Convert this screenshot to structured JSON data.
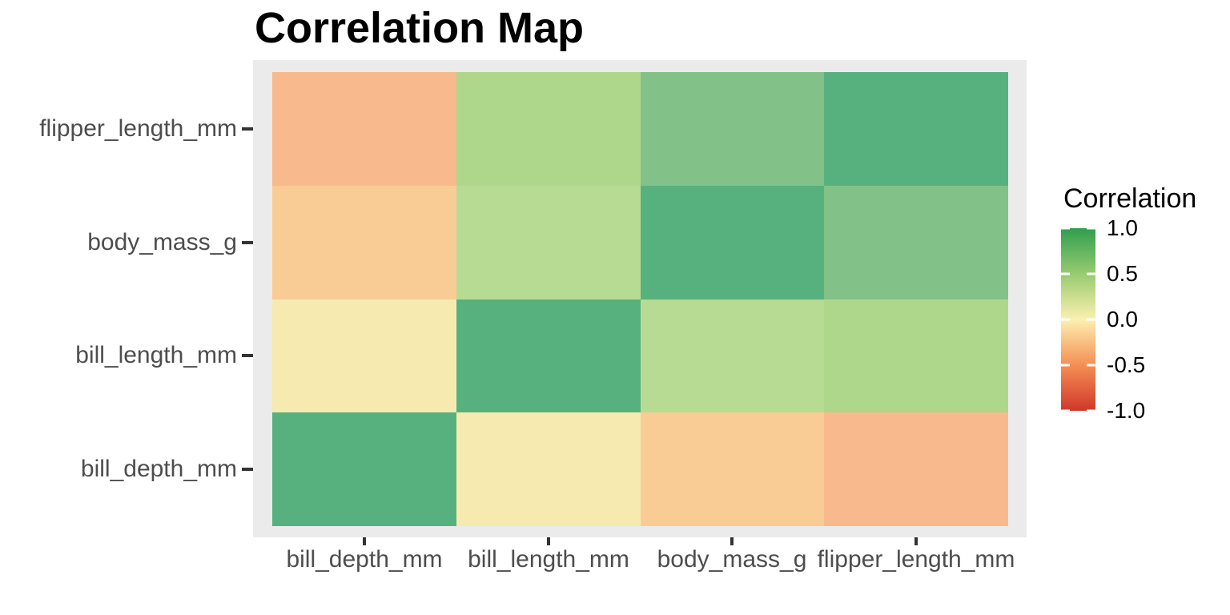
{
  "title": "Correlation Map",
  "colors": {
    "panel_background": "#ebebeb",
    "axis_text": "#4d4d4d",
    "tick_mark": "#333333",
    "title_text": "#000000"
  },
  "chart_data": {
    "type": "heatmap",
    "title": "Correlation Map",
    "x_categories": [
      "bill_depth_mm",
      "bill_length_mm",
      "body_mass_g",
      "flipper_length_mm"
    ],
    "y_categories_top_to_bottom": [
      "flipper_length_mm",
      "body_mass_g",
      "bill_length_mm",
      "bill_depth_mm"
    ],
    "value_range": [
      -1,
      1
    ],
    "grid": false,
    "legend": {
      "title": "Correlation",
      "position": "right",
      "ticks": [
        "1.0",
        "0.5",
        "0.0",
        "-0.5",
        "-1.0"
      ],
      "gradient_stops": [
        {
          "value": 1.0,
          "color": "#2f9e4f"
        },
        {
          "value": 0.5,
          "color": "#97cb70"
        },
        {
          "value": 0.0,
          "color": "#fcf0b0"
        },
        {
          "value": -0.5,
          "color": "#f58e54"
        },
        {
          "value": -1.0,
          "color": "#cf382a"
        }
      ]
    },
    "cells": [
      {
        "y": "flipper_length_mm",
        "values": [
          -0.58,
          0.66,
          0.87,
          1.0
        ],
        "colors": [
          "#f8ba8d",
          "#afd78b",
          "#82c288",
          "#57b17e"
        ]
      },
      {
        "y": "body_mass_g",
        "values": [
          -0.47,
          0.6,
          1.0,
          0.87
        ],
        "colors": [
          "#f9cc96",
          "#b7db92",
          "#57b17e",
          "#82c288"
        ]
      },
      {
        "y": "bill_length_mm",
        "values": [
          -0.24,
          1.0,
          0.6,
          0.66
        ],
        "colors": [
          "#f7eab1",
          "#57b17e",
          "#b7db92",
          "#afd78b"
        ]
      },
      {
        "y": "bill_depth_mm",
        "values": [
          1.0,
          -0.24,
          -0.47,
          -0.58
        ],
        "colors": [
          "#57b17e",
          "#f7eab1",
          "#f9cc96",
          "#f8ba8d"
        ]
      }
    ]
  }
}
